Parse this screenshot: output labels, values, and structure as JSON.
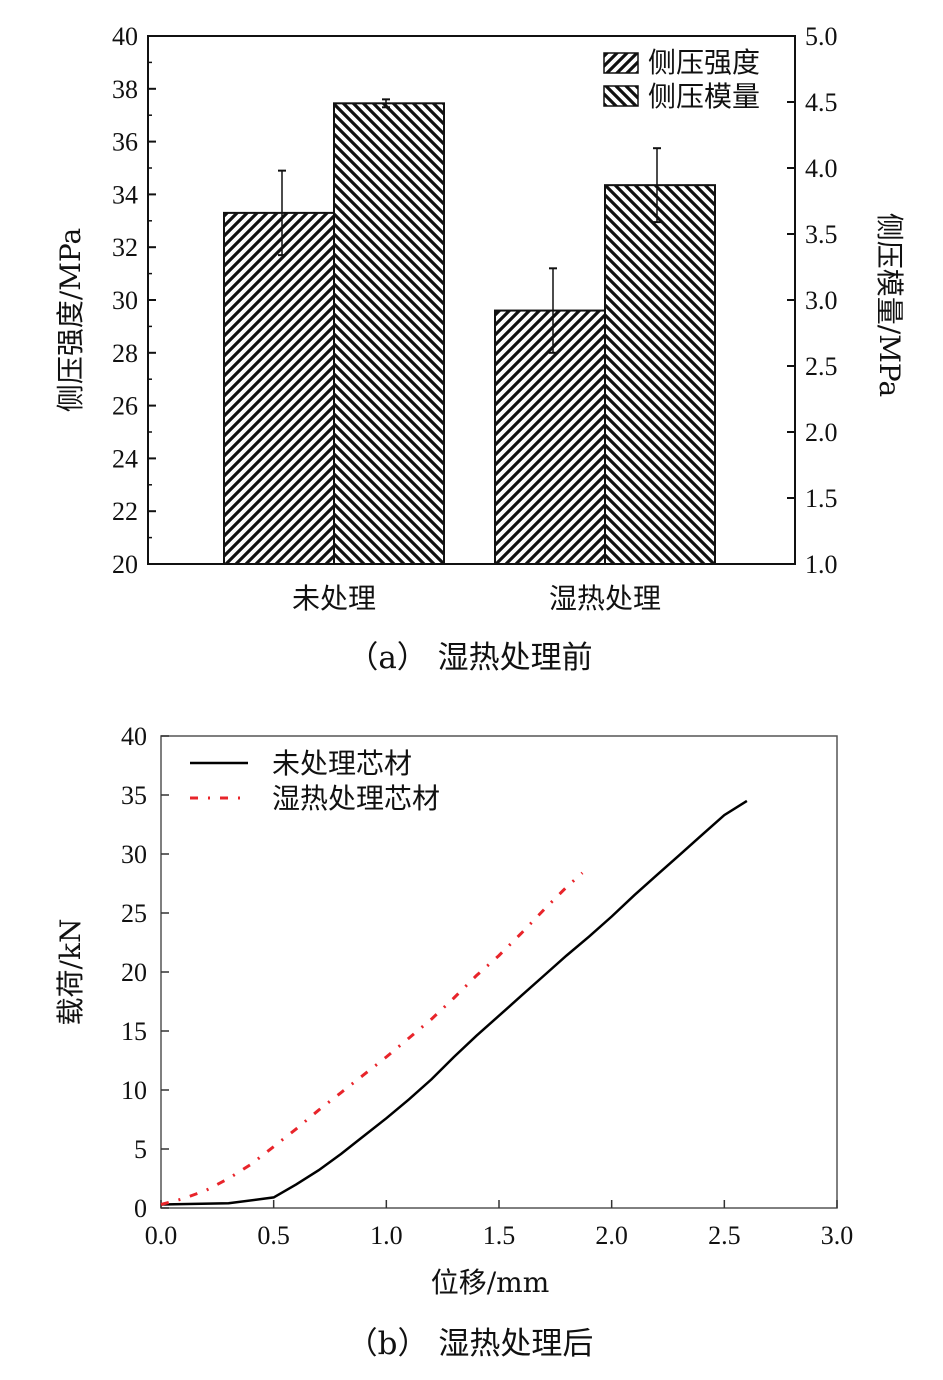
{
  "chart_data": [
    {
      "type": "bar",
      "caption": "（a） 湿热处理前",
      "categories": [
        "未处理",
        "湿热处理"
      ],
      "ylabel": "侧压强度/MPa",
      "ylim": [
        20,
        40
      ],
      "yticks": [
        20,
        22,
        24,
        26,
        28,
        30,
        32,
        34,
        36,
        38,
        40
      ],
      "y2label": "侧压模量/MPa",
      "y2lim": [
        1.0,
        5.0
      ],
      "y2ticks": [
        "1.0",
        "1.5",
        "2.0",
        "2.5",
        "3.0",
        "3.5",
        "4.0",
        "4.5",
        "5.0"
      ],
      "legend_position": "top-right",
      "series": [
        {
          "name": "侧压强度",
          "axis": "left",
          "hatch": "forward",
          "values": [
            33.3,
            29.6
          ],
          "errors": [
            1.6,
            1.6
          ]
        },
        {
          "name": "侧压模量",
          "axis": "right",
          "hatch": "backward",
          "values": [
            4.49,
            3.87
          ],
          "errors": [
            0.03,
            0.28
          ]
        }
      ],
      "colors": {
        "bar_hatch": "#111111",
        "bar_fill": "#ffffff"
      }
    },
    {
      "type": "line",
      "caption": "（b） 湿热处理后",
      "xlabel": "位移/mm",
      "ylabel": "载荷/kN",
      "xlim": [
        0.0,
        3.0
      ],
      "ylim": [
        0,
        40
      ],
      "xticks": [
        "0.0",
        "0.5",
        "1.0",
        "1.5",
        "2.0",
        "2.5",
        "3.0"
      ],
      "yticks": [
        "0",
        "5",
        "10",
        "15",
        "20",
        "25",
        "30",
        "35",
        "40"
      ],
      "legend_position": "top-left",
      "series": [
        {
          "name": "未处理芯材",
          "style": "solid",
          "color": "#000000",
          "x": [
            0.0,
            0.3,
            0.5,
            0.6,
            0.7,
            0.8,
            0.9,
            1.0,
            1.1,
            1.2,
            1.3,
            1.4,
            1.5,
            1.6,
            1.7,
            1.8,
            1.9,
            2.0,
            2.1,
            2.2,
            2.3,
            2.4,
            2.5,
            2.6
          ],
          "y": [
            0.3,
            0.4,
            0.9,
            2.0,
            3.2,
            4.6,
            6.1,
            7.6,
            9.2,
            10.9,
            12.8,
            14.6,
            16.3,
            18.0,
            19.7,
            21.4,
            23.0,
            24.7,
            26.5,
            28.2,
            29.9,
            31.6,
            33.3,
            34.5
          ]
        },
        {
          "name": "湿热处理芯材",
          "style": "dash-dot",
          "color": "#e8242a",
          "x": [
            0.0,
            0.1,
            0.2,
            0.3,
            0.4,
            0.5,
            0.6,
            0.7,
            0.8,
            0.9,
            1.0,
            1.1,
            1.2,
            1.3,
            1.4,
            1.5,
            1.6,
            1.7,
            1.8,
            1.87
          ],
          "y": [
            0.3,
            0.8,
            1.5,
            2.5,
            3.7,
            5.2,
            6.7,
            8.3,
            9.8,
            11.3,
            12.8,
            14.4,
            16.0,
            17.8,
            19.7,
            21.4,
            23.3,
            25.3,
            27.2,
            28.4
          ]
        }
      ]
    }
  ]
}
